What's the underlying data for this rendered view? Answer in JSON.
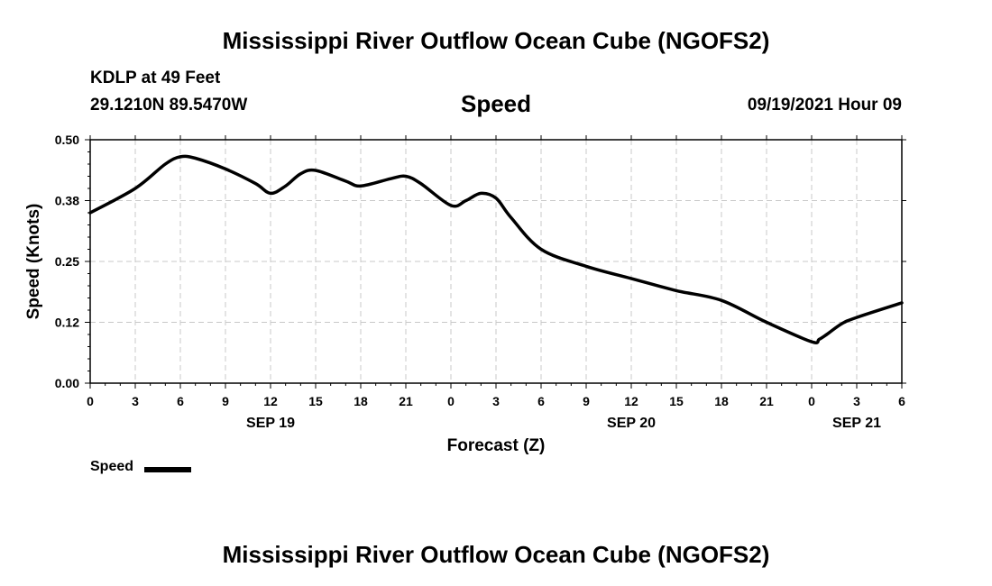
{
  "header": {
    "title": "Mississippi River Outflow Ocean Cube (NGOFS2)",
    "station": "KDLP at 49 Feet",
    "coords": "29.1210N  89.5470W",
    "variable": "Speed",
    "datetime": "09/19/2021 Hour 09"
  },
  "footer": {
    "title": "Mississippi River Outflow Ocean Cube (NGOFS2)"
  },
  "legend": {
    "label": "Speed",
    "color": "#000000"
  },
  "chart_data": {
    "type": "line",
    "title": "Speed",
    "xlabel": "Forecast (Z)",
    "ylabel": "Speed (Knots)",
    "xlim": [
      0,
      54
    ],
    "ylim": [
      0,
      0.5
    ],
    "grid": true,
    "y_ticks": [
      "0.00",
      "0.12",
      "0.25",
      "0.38",
      "0.50"
    ],
    "y_tick_values": [
      0,
      0.125,
      0.25,
      0.375,
      0.5
    ],
    "x_ticks": [
      "0",
      "3",
      "6",
      "9",
      "12",
      "15",
      "18",
      "21",
      "0",
      "3",
      "6",
      "9",
      "12",
      "15",
      "18",
      "21",
      "0",
      "3",
      "6"
    ],
    "date_labels": [
      {
        "label": "SEP 19",
        "at_hour": 12
      },
      {
        "label": "SEP 20",
        "at_hour": 36
      },
      {
        "label": "SEP 21",
        "at_hour": 51
      }
    ],
    "series": [
      {
        "name": "Speed",
        "color": "#000000",
        "x": [
          0,
          3,
          5,
          6,
          7,
          9,
          11,
          12,
          13,
          14,
          15,
          17,
          18,
          20,
          21,
          22,
          24,
          25,
          26,
          27,
          28,
          30,
          33,
          36,
          39,
          42,
          45,
          48,
          48.5,
          49,
          50,
          51,
          54
        ],
        "y": [
          0.35,
          0.4,
          0.45,
          0.465,
          0.462,
          0.44,
          0.41,
          0.39,
          0.405,
          0.43,
          0.437,
          0.415,
          0.405,
          0.42,
          0.425,
          0.41,
          0.365,
          0.375,
          0.39,
          0.38,
          0.34,
          0.275,
          0.24,
          0.215,
          0.19,
          0.17,
          0.125,
          0.085,
          0.09,
          0.1,
          0.122,
          0.135,
          0.165
        ]
      }
    ]
  }
}
